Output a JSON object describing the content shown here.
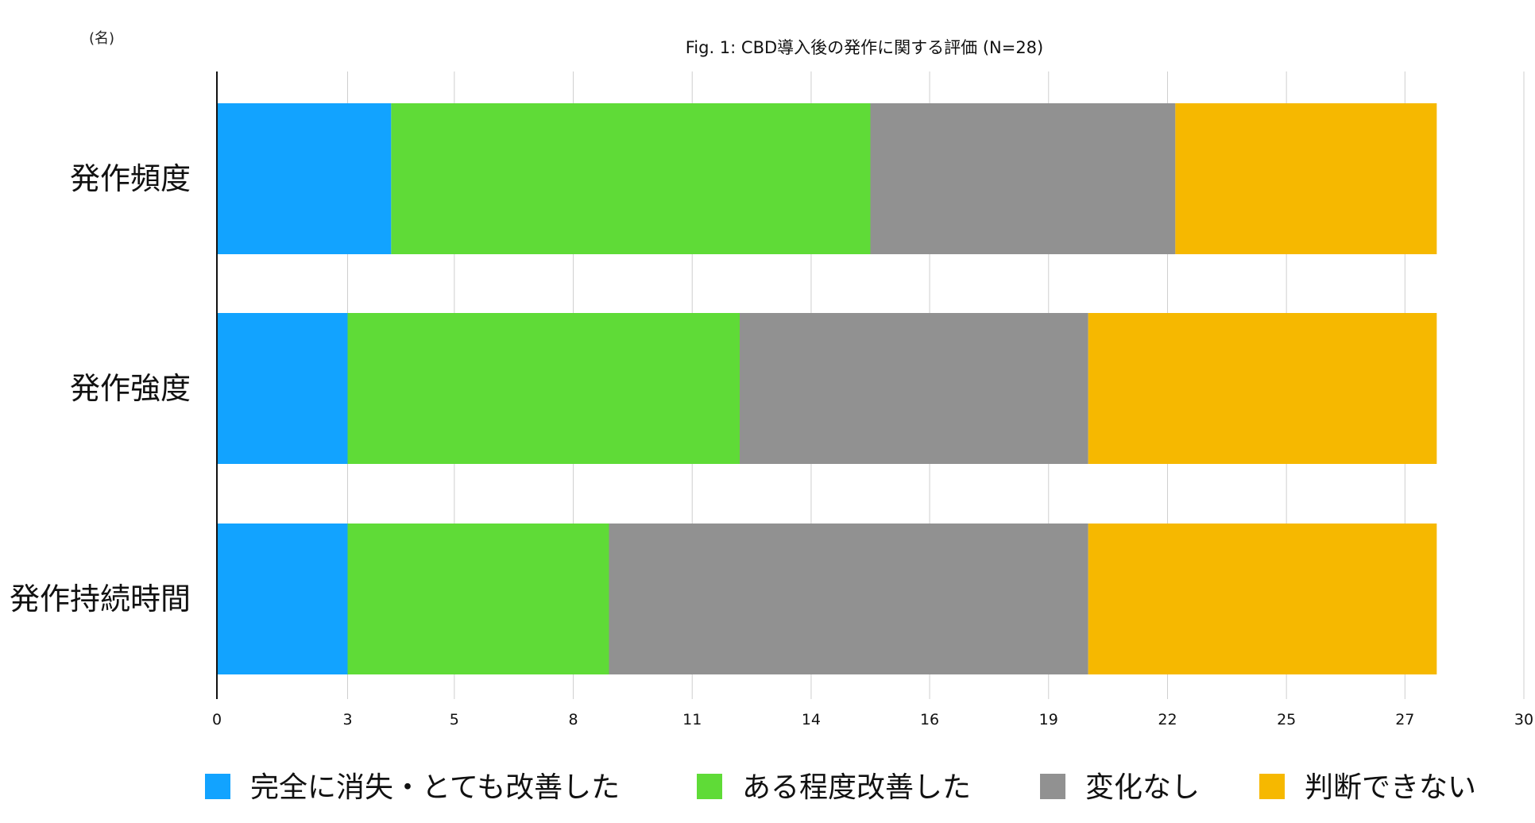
{
  "chart_data": {
    "type": "bar",
    "orientation": "horizontal",
    "stacked": true,
    "title": "Fig. 1: CBD導入後の発作に関する評価  (N=28)",
    "unit_label": "(名)",
    "xlim": [
      0,
      30
    ],
    "x_ticks": [
      {
        "value": 0,
        "label": "0"
      },
      {
        "value": 3,
        "label": "3"
      },
      {
        "value": 5.45,
        "label": "5"
      },
      {
        "value": 8.18,
        "label": "8"
      },
      {
        "value": 10.91,
        "label": "11"
      },
      {
        "value": 13.64,
        "label": "14"
      },
      {
        "value": 16.36,
        "label": "16"
      },
      {
        "value": 19.09,
        "label": "19"
      },
      {
        "value": 21.82,
        "label": "22"
      },
      {
        "value": 24.55,
        "label": "25"
      },
      {
        "value": 27.27,
        "label": "27"
      },
      {
        "value": 30,
        "label": "30"
      }
    ],
    "categories": [
      "発作頻度",
      "発作強度",
      "発作持続時間"
    ],
    "series": [
      {
        "name": "完全に消失・とても改善した",
        "color": "#12A3FF",
        "values": [
          4,
          3,
          3
        ]
      },
      {
        "name": "ある程度改善した",
        "color": "#5FDB37",
        "values": [
          11,
          9,
          6
        ]
      },
      {
        "name": "変化なし",
        "color": "#919191",
        "values": [
          7,
          8,
          11
        ]
      },
      {
        "name": "判断できない",
        "color": "#F6B800",
        "values": [
          6,
          8,
          8
        ]
      }
    ],
    "grid": true,
    "legend_position": "bottom"
  }
}
